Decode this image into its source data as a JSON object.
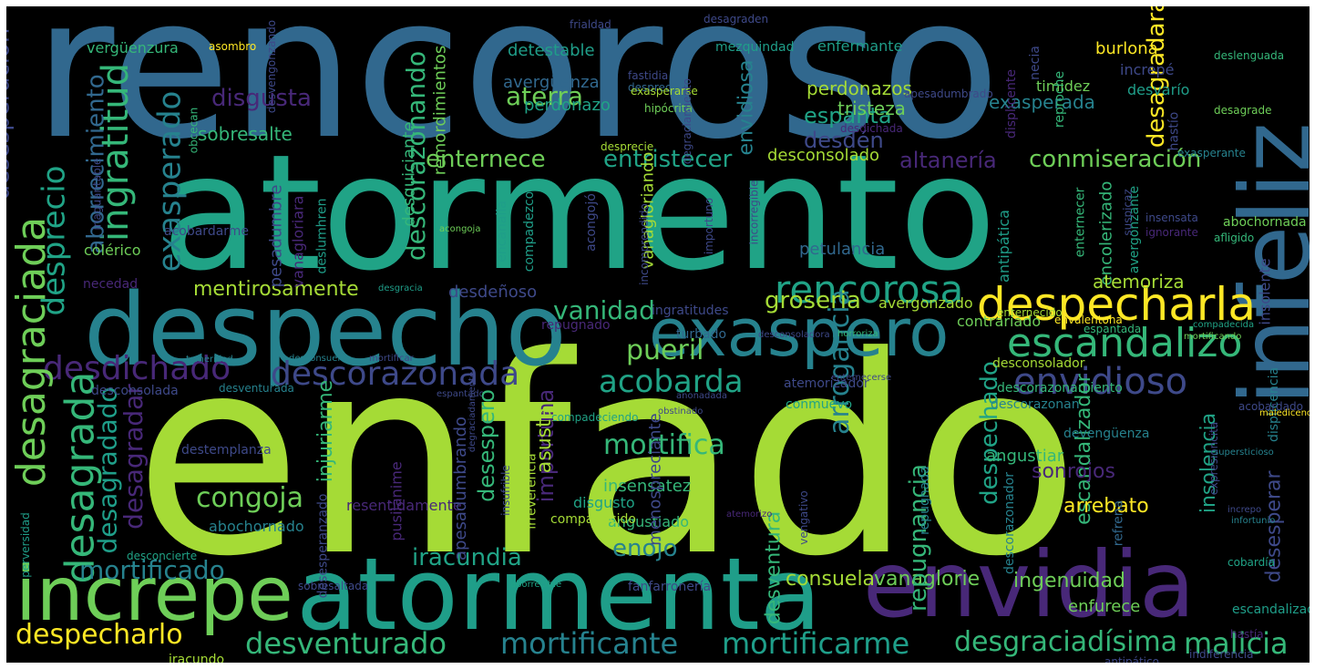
{
  "background": "#000000",
  "palette": [
    "#31688e",
    "#20a386",
    "#a5db36",
    "#440154",
    "#482878",
    "#3e4989",
    "#26828e",
    "#35b779",
    "#6ece58",
    "#fde725",
    "#1f9e89"
  ],
  "words": [
    {
      "text": "rencoroso",
      "color": "#31688e"
    },
    {
      "text": "atormento",
      "color": "#20a386"
    },
    {
      "text": "enfado",
      "color": "#a5db36"
    },
    {
      "text": "despecho",
      "color": "#26828e"
    },
    {
      "text": "atormenta",
      "color": "#1f9e89"
    },
    {
      "text": "envidia",
      "color": "#482878"
    },
    {
      "text": "increpe",
      "color": "#6ece58"
    },
    {
      "text": "infeliz",
      "color": "#31688e"
    },
    {
      "text": "exaspero",
      "color": "#26828e"
    },
    {
      "text": "despecharla",
      "color": "#fde725"
    },
    {
      "text": "escandalizo",
      "color": "#35b779"
    },
    {
      "text": "envidioso",
      "color": "#3e4989"
    },
    {
      "text": "rencorosa",
      "color": "#20a386"
    },
    {
      "text": "desdichado",
      "color": "#482878"
    },
    {
      "text": "descorazonada",
      "color": "#3e4989"
    },
    {
      "text": "desagraciada",
      "color": "#6ece58"
    },
    {
      "text": "desagrada",
      "color": "#35b779"
    },
    {
      "text": "desprecio",
      "color": "#20a386"
    },
    {
      "text": "ingratitud",
      "color": "#35b779"
    },
    {
      "text": "exasperado",
      "color": "#26828e"
    },
    {
      "text": "desesperación",
      "color": "#3e4989"
    },
    {
      "text": "aborrecimiento",
      "color": "#31688e"
    },
    {
      "text": "desagradado",
      "color": "#1f9e89"
    },
    {
      "text": "desagradar",
      "color": "#482878"
    },
    {
      "text": "descorazonando",
      "color": "#35b779"
    },
    {
      "text": "enternece",
      "color": "#6ece58"
    },
    {
      "text": "entristecer",
      "color": "#20a386"
    },
    {
      "text": "conmiseración",
      "color": "#6ece58"
    },
    {
      "text": "desagradara",
      "color": "#fde725"
    },
    {
      "text": "mentirosamente",
      "color": "#a5db36"
    },
    {
      "text": "vanidad",
      "color": "#35b779"
    },
    {
      "text": "pueril",
      "color": "#6ece58"
    },
    {
      "text": "acobarda",
      "color": "#20a386"
    },
    {
      "text": "mortifica",
      "color": "#35b779"
    },
    {
      "text": "congoja",
      "color": "#6ece58"
    },
    {
      "text": "mortificado",
      "color": "#26828e"
    },
    {
      "text": "despecharlo",
      "color": "#fde725"
    },
    {
      "text": "desventurado",
      "color": "#35b779"
    },
    {
      "text": "mortificante",
      "color": "#26828e"
    },
    {
      "text": "mortificarme",
      "color": "#1f9e89"
    },
    {
      "text": "desgraciadísima",
      "color": "#35b779"
    },
    {
      "text": "malicia",
      "color": "#35b779"
    },
    {
      "text": "iracundia",
      "color": "#20a386"
    },
    {
      "text": "enojo",
      "color": "#26828e"
    },
    {
      "text": "consuela",
      "color": "#a5db36"
    },
    {
      "text": "desventura",
      "color": "#35b779"
    },
    {
      "text": "vanaglorie",
      "color": "#6ece58"
    },
    {
      "text": "ingenuidad",
      "color": "#6ece58"
    },
    {
      "text": "enfurece",
      "color": "#6ece58"
    },
    {
      "text": "arrogancia",
      "color": "#26828e"
    },
    {
      "text": "groseria",
      "color": "#a5db36"
    },
    {
      "text": "repugnancia",
      "color": "#35b779"
    },
    {
      "text": "despechado",
      "color": "#20a386"
    },
    {
      "text": "escandalizador",
      "color": "#35b779"
    },
    {
      "text": "arrebato",
      "color": "#fde725"
    },
    {
      "text": "sonrojos",
      "color": "#482878"
    },
    {
      "text": "angustiar",
      "color": "#35b779"
    },
    {
      "text": "insolencia",
      "color": "#20a386"
    },
    {
      "text": "desesperar",
      "color": "#3e4989"
    },
    {
      "text": "disgusta",
      "color": "#482878"
    },
    {
      "text": "aterra",
      "color": "#6ece58"
    },
    {
      "text": "avergüenza",
      "color": "#31688e"
    },
    {
      "text": "perdonazo",
      "color": "#20a386"
    },
    {
      "text": "detestable",
      "color": "#1f9e89"
    },
    {
      "text": "envidiosa",
      "color": "#26828e"
    },
    {
      "text": "espanta",
      "color": "#20a386"
    },
    {
      "text": "desdén",
      "color": "#3e4989"
    },
    {
      "text": "altanería",
      "color": "#482878"
    },
    {
      "text": "desconsolado",
      "color": "#a5db36"
    },
    {
      "text": "perdonazos",
      "color": "#a5db36"
    },
    {
      "text": "tristeza",
      "color": "#6ece58"
    },
    {
      "text": "exasperada",
      "color": "#26828e"
    },
    {
      "text": "enfermante",
      "color": "#1f9e89"
    },
    {
      "text": "burlona",
      "color": "#fde725"
    },
    {
      "text": "increpé",
      "color": "#3e4989"
    },
    {
      "text": "desvarío",
      "color": "#1f9e89"
    },
    {
      "text": "timidez",
      "color": "#6ece58"
    },
    {
      "text": "sobresalte",
      "color": "#35b779"
    },
    {
      "text": "vergüenzura",
      "color": "#35b779"
    },
    {
      "text": "asombro",
      "color": "#fde725"
    },
    {
      "text": "mezquindad",
      "color": "#1f9e89"
    },
    {
      "text": "desagraden",
      "color": "#3e4989"
    },
    {
      "text": "frialdad",
      "color": "#3e4989"
    },
    {
      "text": "remordimientos",
      "color": "#6ece58"
    },
    {
      "text": "desquiciante",
      "color": "#35b779"
    },
    {
      "text": "fastidia",
      "color": "#3e4989"
    },
    {
      "text": "desprecios",
      "color": "#31688e"
    },
    {
      "text": "exasperarse",
      "color": "#a5db36"
    },
    {
      "text": "hipócrita",
      "color": "#6ece58"
    },
    {
      "text": "apesadumbrado",
      "color": "#3e4989"
    },
    {
      "text": "desdichada",
      "color": "#482878"
    },
    {
      "text": "desagrade",
      "color": "#6ece58"
    },
    {
      "text": "deslenguada",
      "color": "#35b779"
    },
    {
      "text": "reproche",
      "color": "#35b779"
    },
    {
      "text": "necia",
      "color": "#3e4989"
    },
    {
      "text": "displicente",
      "color": "#482878"
    },
    {
      "text": "hastío",
      "color": "#3e4989"
    },
    {
      "text": "desprecie",
      "color": "#a5db36"
    },
    {
      "text": "exasperante",
      "color": "#26828e"
    },
    {
      "text": "pesadumbre",
      "color": "#3e4989"
    },
    {
      "text": "acobardarme",
      "color": "#3e4989"
    },
    {
      "text": "inaguantable",
      "color": "#3e4989"
    },
    {
      "text": "obcecan",
      "color": "#35b779"
    },
    {
      "text": "vanagloriara",
      "color": "#482878"
    },
    {
      "text": "deslumhren",
      "color": "#1f9e89"
    },
    {
      "text": "colérico",
      "color": "#6ece58"
    },
    {
      "text": "necedad",
      "color": "#482878"
    },
    {
      "text": "desgracia",
      "color": "#1f9e89"
    },
    {
      "text": "encanalla",
      "color": "#1f9e89"
    },
    {
      "text": "compadezco",
      "color": "#1f9e89"
    },
    {
      "text": "vanagloriando",
      "color": "#a5db36"
    },
    {
      "text": "acongojó",
      "color": "#3e4989"
    },
    {
      "text": "incomprendido",
      "color": "#3e4989"
    },
    {
      "text": "incorregible",
      "color": "#3e4989"
    },
    {
      "text": "importuno",
      "color": "#3e4989"
    },
    {
      "text": "acongoja",
      "color": "#6ece58"
    },
    {
      "text": "petulancia",
      "color": "#31688e"
    },
    {
      "text": "antipática",
      "color": "#1f9e89"
    },
    {
      "text": "avergonzante",
      "color": "#20a386"
    },
    {
      "text": "enternecer",
      "color": "#35b779"
    },
    {
      "text": "encolerizado",
      "color": "#35b779"
    },
    {
      "text": "suspicaz",
      "color": "#3e4989"
    },
    {
      "text": "insensata",
      "color": "#3e4989"
    },
    {
      "text": "ignorante",
      "color": "#482878"
    },
    {
      "text": "abochornada",
      "color": "#6ece58"
    },
    {
      "text": "afligido",
      "color": "#35b779"
    },
    {
      "text": "atemoriza",
      "color": "#a5db36"
    },
    {
      "text": "avergonzado",
      "color": "#a5db36"
    },
    {
      "text": "contrariado",
      "color": "#6ece58"
    },
    {
      "text": "enternecido",
      "color": "#a5db36"
    },
    {
      "text": "envalentona",
      "color": "#fde725"
    },
    {
      "text": "espantada",
      "color": "#35b779"
    },
    {
      "text": "compadecida",
      "color": "#20a386"
    },
    {
      "text": "mortificando",
      "color": "#6ece58"
    },
    {
      "text": "insolente",
      "color": "#3e4989"
    },
    {
      "text": "desdeñoso",
      "color": "#3e4989"
    },
    {
      "text": "ingratitudes",
      "color": "#3e4989"
    },
    {
      "text": "repugnado",
      "color": "#482878"
    },
    {
      "text": "turbado",
      "color": "#31688e"
    },
    {
      "text": "desconsoladora",
      "color": "#3e4989"
    },
    {
      "text": "horroriza",
      "color": "#35b779"
    },
    {
      "text": "desconsolador",
      "color": "#a5db36"
    },
    {
      "text": "descorazonamiento",
      "color": "#35b779"
    },
    {
      "text": "atemorizador",
      "color": "#3e4989"
    },
    {
      "text": "conmuevo",
      "color": "#20a386"
    },
    {
      "text": "descorazonan",
      "color": "#26828e"
    },
    {
      "text": "displicencia",
      "color": "#26828e"
    },
    {
      "text": "acobardado",
      "color": "#3e4989"
    },
    {
      "text": "enternecerse",
      "color": "#3e4989"
    },
    {
      "text": "anonadada",
      "color": "#3e4989"
    },
    {
      "text": "obstinado",
      "color": "#3e4989"
    },
    {
      "text": "espantado",
      "color": "#3e4989"
    },
    {
      "text": "maledicencia",
      "color": "#fde725"
    },
    {
      "text": "desventurada",
      "color": "#26828e"
    },
    {
      "text": "desconsolada",
      "color": "#3e4989"
    },
    {
      "text": "desconsuelos",
      "color": "#26828e"
    },
    {
      "text": "mortificar",
      "color": "#3e4989"
    },
    {
      "text": "temeridad",
      "color": "#26828e"
    },
    {
      "text": "destemplanza",
      "color": "#3e4989"
    },
    {
      "text": "compadeciendo",
      "color": "#20a386"
    },
    {
      "text": "injuriarme",
      "color": "#35b779"
    },
    {
      "text": "desespero",
      "color": "#35b779"
    },
    {
      "text": "importuna",
      "color": "#482878"
    },
    {
      "text": "asusta",
      "color": "#a5db36"
    },
    {
      "text": "insensatez",
      "color": "#35b779"
    },
    {
      "text": "disgusto",
      "color": "#20a386"
    },
    {
      "text": "angustiado",
      "color": "#35b779"
    },
    {
      "text": "compadecido",
      "color": "#a5db36"
    },
    {
      "text": "resentidamente",
      "color": "#482878"
    },
    {
      "text": "pusilánime",
      "color": "#482878"
    },
    {
      "text": "apesadumbrando",
      "color": "#3e4989"
    },
    {
      "text": "menospreciante",
      "color": "#3e4989"
    },
    {
      "text": "insufrible",
      "color": "#3e4989"
    },
    {
      "text": "irreverencia",
      "color": "#a5db36"
    },
    {
      "text": "abochornado",
      "color": "#26828e"
    },
    {
      "text": "devengüenza",
      "color": "#26828e"
    },
    {
      "text": "expresioncita",
      "color": "#3e4989"
    },
    {
      "text": "supersticioso",
      "color": "#26828e"
    },
    {
      "text": "increpo",
      "color": "#3e4989"
    },
    {
      "text": "infortunio",
      "color": "#26828e"
    },
    {
      "text": "repugnada",
      "color": "#26828e"
    },
    {
      "text": "descorazonador",
      "color": "#26828e"
    },
    {
      "text": "vengativo",
      "color": "#3e4989"
    },
    {
      "text": "atemorizo",
      "color": "#482878"
    },
    {
      "text": "refrena",
      "color": "#31688e"
    },
    {
      "text": "cobardía",
      "color": "#20a386"
    },
    {
      "text": "escandalizadora",
      "color": "#1f9e89"
    },
    {
      "text": "desesperanzado",
      "color": "#3e4989"
    },
    {
      "text": "perversidad",
      "color": "#1f9e89"
    },
    {
      "text": "desconcierte",
      "color": "#20a386"
    },
    {
      "text": "sobresaltada",
      "color": "#3e4989"
    },
    {
      "text": "aborrecible",
      "color": "#20a386"
    },
    {
      "text": "fanfarronería",
      "color": "#3e4989"
    },
    {
      "text": "iracundo",
      "color": "#a5db36"
    },
    {
      "text": "hastía",
      "color": "#482878"
    },
    {
      "text": "indiferencia",
      "color": "#3e4989"
    },
    {
      "text": "antipático",
      "color": "#3e4989"
    },
    {
      "text": "degraciadamente",
      "color": "#3e4989"
    },
    {
      "text": "desvengonzando",
      "color": "#3e4989"
    },
    {
      "text": "degraciamiento",
      "color": "#3e4989"
    }
  ]
}
